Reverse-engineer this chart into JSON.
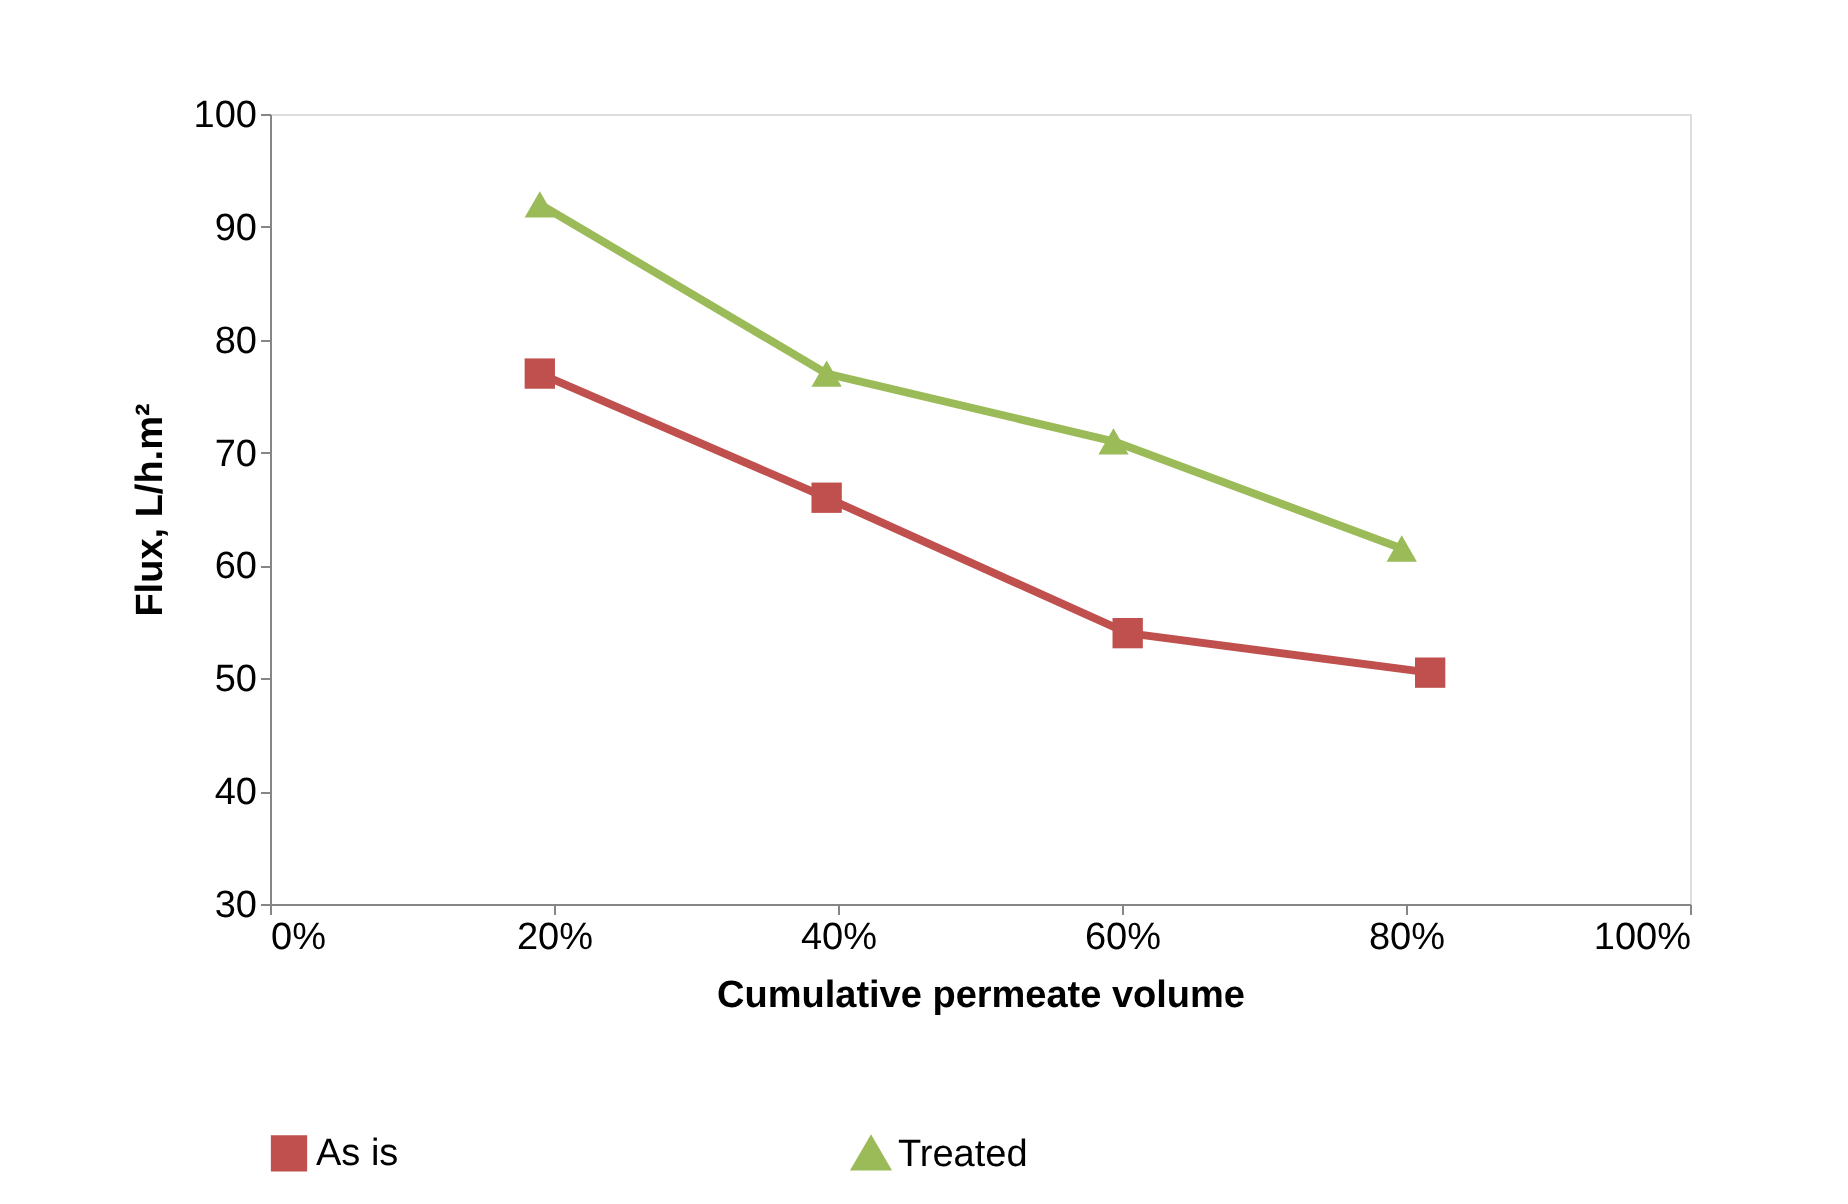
{
  "chart_data": {
    "type": "line",
    "xlabel": "Cumulative permeate volume",
    "ylabel": "Flux, L/h.m²",
    "xlim": [
      0,
      1
    ],
    "xticks": [
      {
        "value": 0,
        "label": "0%"
      },
      {
        "value": 0.2,
        "label": "20%"
      },
      {
        "value": 0.4,
        "label": "40%"
      },
      {
        "value": 0.6,
        "label": "60%"
      },
      {
        "value": 0.8,
        "label": "80%"
      },
      {
        "value": 1,
        "label": "100%"
      }
    ],
    "ylim": [
      30,
      100
    ],
    "yticks": [
      30,
      40,
      50,
      60,
      70,
      80,
      90,
      100
    ],
    "grid": false,
    "legend": "bottom",
    "line_style": "solid",
    "series": [
      {
        "name": "As is",
        "color": "#c0504d",
        "marker": "square",
        "x": [
          0.19,
          0.392,
          0.604,
          0.817
        ],
        "values": [
          77,
          66,
          54,
          50.5
        ]
      },
      {
        "name": "Treated",
        "color": "#9bbb59",
        "marker": "triangle",
        "x": [
          0.19,
          0.392,
          0.594,
          0.797
        ],
        "values": [
          92,
          77,
          71,
          61.5
        ]
      }
    ]
  }
}
